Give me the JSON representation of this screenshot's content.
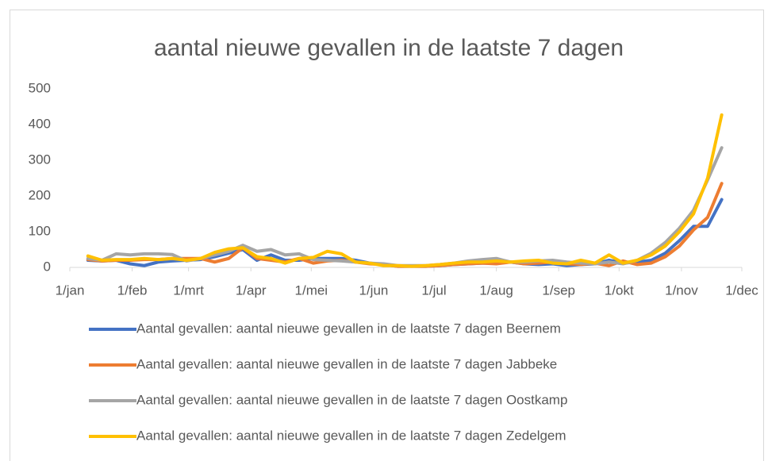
{
  "chart_data": {
    "type": "line",
    "title": "aantal nieuwe gevallen in de laatste 7 dagen",
    "x": [
      9,
      16,
      23,
      30,
      37,
      44,
      51,
      58,
      65,
      72,
      79,
      86,
      93,
      100,
      107,
      114,
      121,
      128,
      135,
      142,
      149,
      156,
      163,
      170,
      177,
      184,
      191,
      198,
      205,
      212,
      219,
      226,
      233,
      240,
      247,
      254,
      261,
      268,
      275,
      282,
      289,
      296,
      303,
      310,
      317,
      324
    ],
    "xlim": [
      0,
      334
    ],
    "xticks": [
      {
        "value": 0,
        "label": "1/jan"
      },
      {
        "value": 31,
        "label": "1/feb"
      },
      {
        "value": 59,
        "label": "1/mrt"
      },
      {
        "value": 90,
        "label": "1/apr"
      },
      {
        "value": 120,
        "label": "1/mei"
      },
      {
        "value": 151,
        "label": "1/jun"
      },
      {
        "value": 181,
        "label": "1/jul"
      },
      {
        "value": 212,
        "label": "1/aug"
      },
      {
        "value": 243,
        "label": "1/sep"
      },
      {
        "value": 273,
        "label": "1/okt"
      },
      {
        "value": 304,
        "label": "1/nov"
      },
      {
        "value": 334,
        "label": "1/dec"
      }
    ],
    "ylim": [
      0,
      500
    ],
    "yticks": [
      0,
      100,
      200,
      300,
      400,
      500
    ],
    "grid": false,
    "series": [
      {
        "name": "Aantal gevallen: aantal nieuwe gevallen in de laatste 7 dagen Beernem",
        "color": "#4472c4",
        "values": [
          20,
          18,
          20,
          10,
          5,
          15,
          18,
          20,
          22,
          30,
          40,
          50,
          20,
          35,
          20,
          20,
          25,
          25,
          25,
          20,
          12,
          8,
          3,
          3,
          3,
          5,
          8,
          10,
          12,
          12,
          15,
          10,
          8,
          10,
          5,
          8,
          10,
          20,
          12,
          15,
          20,
          40,
          75,
          115,
          115,
          190
        ]
      },
      {
        "name": "Aantal gevallen: aantal nieuwe gevallen in de laatste 7 dagen Jabbeke",
        "color": "#ed7d31",
        "values": [
          22,
          18,
          20,
          20,
          22,
          22,
          25,
          25,
          25,
          15,
          25,
          55,
          25,
          20,
          15,
          25,
          12,
          18,
          20,
          15,
          10,
          8,
          3,
          3,
          3,
          5,
          8,
          10,
          12,
          10,
          15,
          10,
          12,
          15,
          10,
          8,
          12,
          5,
          18,
          8,
          12,
          30,
          60,
          105,
          140,
          235
        ]
      },
      {
        "name": "Aantal gevallen: aantal nieuwe gevallen in de laatste 7 dagen Oostkamp",
        "color": "#a5a5a5",
        "values": [
          25,
          20,
          38,
          35,
          38,
          38,
          36,
          18,
          25,
          35,
          45,
          62,
          45,
          50,
          35,
          38,
          22,
          20,
          18,
          15,
          12,
          10,
          5,
          5,
          5,
          8,
          12,
          18,
          22,
          25,
          15,
          15,
          18,
          20,
          15,
          12,
          10,
          15,
          10,
          20,
          40,
          70,
          110,
          160,
          245,
          335
        ]
      },
      {
        "name": "Aantal gevallen: aantal nieuwe gevallen in de laatste 7 dagen Zedelgem",
        "color": "#ffc000",
        "values": [
          32,
          20,
          22,
          22,
          25,
          22,
          25,
          20,
          25,
          42,
          52,
          55,
          30,
          25,
          12,
          25,
          28,
          45,
          38,
          15,
          12,
          5,
          5,
          3,
          5,
          8,
          12,
          15,
          15,
          18,
          15,
          18,
          20,
          12,
          10,
          20,
          12,
          35,
          12,
          20,
          35,
          60,
          100,
          150,
          250,
          427
        ]
      }
    ]
  }
}
